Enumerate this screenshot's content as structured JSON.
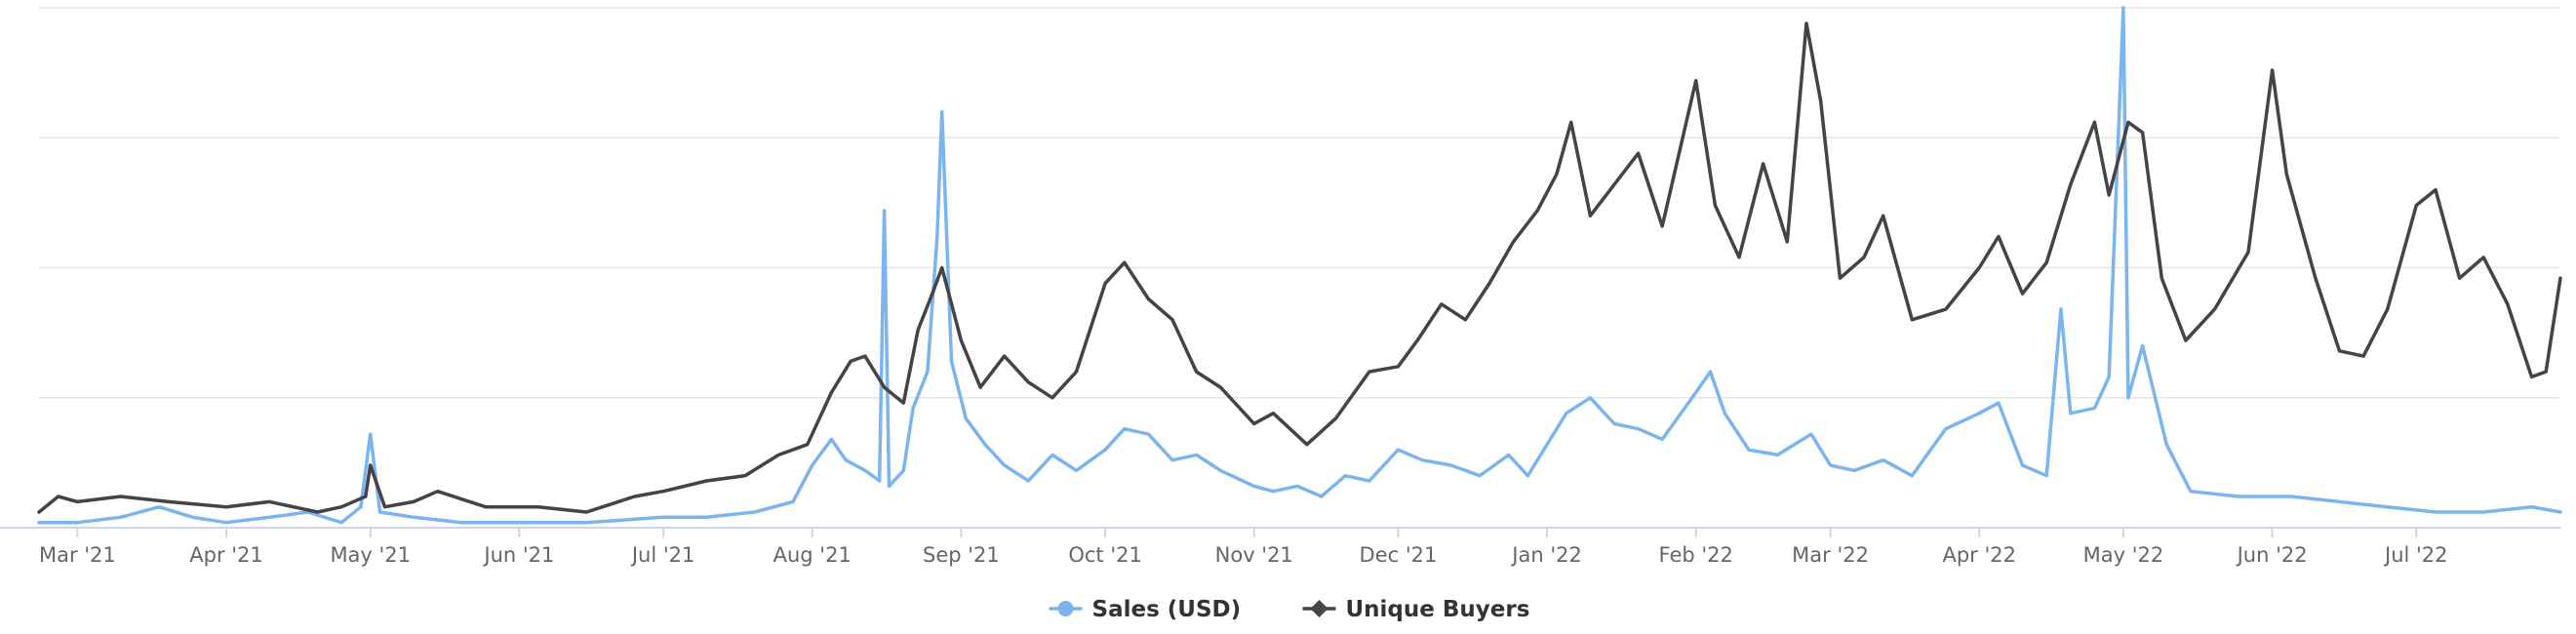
{
  "chart_data": {
    "type": "line",
    "title": "",
    "xlabel": "",
    "ylabel": "",
    "grid": true,
    "legend_position": "bottom-center",
    "x_tick_labels": [
      "Mar '21",
      "Apr '21",
      "May '21",
      "Jun '21",
      "Jul '21",
      "Aug '21",
      "Sep '21",
      "Oct '21",
      "Nov '21",
      "Dec '21",
      "Jan '22",
      "Feb '22",
      "Mar '22",
      "Apr '22",
      "May '22",
      "Jun '22",
      "Jul '22"
    ],
    "x_tick_dates": [
      "2021-03-01",
      "2021-04-01",
      "2021-05-01",
      "2021-06-01",
      "2021-07-01",
      "2021-08-01",
      "2021-09-01",
      "2021-10-01",
      "2021-11-01",
      "2021-12-01",
      "2022-01-01",
      "2022-02-01",
      "2022-03-01",
      "2022-04-01",
      "2022-05-01",
      "2022-06-01",
      "2022-07-01"
    ],
    "xlim": [
      "2021-02-21",
      "2022-07-31"
    ],
    "ylim": [
      0,
      100
    ],
    "series": [
      {
        "name": "Sales (USD)",
        "color": "#7cb5ec",
        "marker": "circle",
        "points": [
          [
            "2021-02-21",
            1
          ],
          [
            "2021-03-01",
            1
          ],
          [
            "2021-03-10",
            2
          ],
          [
            "2021-03-18",
            4
          ],
          [
            "2021-03-25",
            2
          ],
          [
            "2021-04-01",
            1
          ],
          [
            "2021-04-10",
            2
          ],
          [
            "2021-04-18",
            3
          ],
          [
            "2021-04-25",
            1
          ],
          [
            "2021-04-29",
            4
          ],
          [
            "2021-05-01",
            18
          ],
          [
            "2021-05-03",
            3
          ],
          [
            "2021-05-10",
            2
          ],
          [
            "2021-05-20",
            1
          ],
          [
            "2021-06-01",
            1
          ],
          [
            "2021-06-15",
            1
          ],
          [
            "2021-07-01",
            2
          ],
          [
            "2021-07-10",
            2
          ],
          [
            "2021-07-20",
            3
          ],
          [
            "2021-07-28",
            5
          ],
          [
            "2021-08-01",
            12
          ],
          [
            "2021-08-05",
            17
          ],
          [
            "2021-08-08",
            13
          ],
          [
            "2021-08-12",
            11
          ],
          [
            "2021-08-15",
            9
          ],
          [
            "2021-08-16",
            61
          ],
          [
            "2021-08-17",
            8
          ],
          [
            "2021-08-20",
            11
          ],
          [
            "2021-08-22",
            23
          ],
          [
            "2021-08-25",
            30
          ],
          [
            "2021-08-27",
            56
          ],
          [
            "2021-08-28",
            80
          ],
          [
            "2021-08-30",
            32
          ],
          [
            "2021-09-02",
            21
          ],
          [
            "2021-09-06",
            16
          ],
          [
            "2021-09-10",
            12
          ],
          [
            "2021-09-15",
            9
          ],
          [
            "2021-09-20",
            14
          ],
          [
            "2021-09-25",
            11
          ],
          [
            "2021-10-01",
            15
          ],
          [
            "2021-10-05",
            19
          ],
          [
            "2021-10-10",
            18
          ],
          [
            "2021-10-15",
            13
          ],
          [
            "2021-10-20",
            14
          ],
          [
            "2021-10-25",
            11
          ],
          [
            "2021-11-01",
            8
          ],
          [
            "2021-11-05",
            7
          ],
          [
            "2021-11-10",
            8
          ],
          [
            "2021-11-15",
            6
          ],
          [
            "2021-11-20",
            10
          ],
          [
            "2021-11-25",
            9
          ],
          [
            "2021-12-01",
            15
          ],
          [
            "2021-12-06",
            13
          ],
          [
            "2021-12-12",
            12
          ],
          [
            "2021-12-18",
            10
          ],
          [
            "2021-12-24",
            14
          ],
          [
            "2021-12-28",
            10
          ],
          [
            "2022-01-01",
            16
          ],
          [
            "2022-01-05",
            22
          ],
          [
            "2022-01-10",
            25
          ],
          [
            "2022-01-15",
            20
          ],
          [
            "2022-01-20",
            19
          ],
          [
            "2022-01-25",
            17
          ],
          [
            "2022-02-01",
            26
          ],
          [
            "2022-02-04",
            30
          ],
          [
            "2022-02-07",
            22
          ],
          [
            "2022-02-12",
            15
          ],
          [
            "2022-02-18",
            14
          ],
          [
            "2022-02-25",
            18
          ],
          [
            "2022-03-01",
            12
          ],
          [
            "2022-03-06",
            11
          ],
          [
            "2022-03-12",
            13
          ],
          [
            "2022-03-18",
            10
          ],
          [
            "2022-03-25",
            19
          ],
          [
            "2022-04-01",
            22
          ],
          [
            "2022-04-05",
            24
          ],
          [
            "2022-04-10",
            12
          ],
          [
            "2022-04-15",
            10
          ],
          [
            "2022-04-18",
            42
          ],
          [
            "2022-04-20",
            22
          ],
          [
            "2022-04-25",
            23
          ],
          [
            "2022-04-28",
            29
          ],
          [
            "2022-05-01",
            100
          ],
          [
            "2022-05-02",
            25
          ],
          [
            "2022-05-05",
            35
          ],
          [
            "2022-05-10",
            16
          ],
          [
            "2022-05-15",
            7
          ],
          [
            "2022-05-25",
            6
          ],
          [
            "2022-06-05",
            6
          ],
          [
            "2022-06-15",
            5
          ],
          [
            "2022-06-25",
            4
          ],
          [
            "2022-07-05",
            3
          ],
          [
            "2022-07-15",
            3
          ],
          [
            "2022-07-25",
            4
          ],
          [
            "2022-07-31",
            3
          ]
        ]
      },
      {
        "name": "Unique Buyers",
        "color": "#434348",
        "marker": "diamond",
        "points": [
          [
            "2021-02-21",
            3
          ],
          [
            "2021-02-25",
            6
          ],
          [
            "2021-03-01",
            5
          ],
          [
            "2021-03-10",
            6
          ],
          [
            "2021-03-20",
            5
          ],
          [
            "2021-04-01",
            4
          ],
          [
            "2021-04-10",
            5
          ],
          [
            "2021-04-20",
            3
          ],
          [
            "2021-04-25",
            4
          ],
          [
            "2021-04-30",
            6
          ],
          [
            "2021-05-01",
            12
          ],
          [
            "2021-05-04",
            4
          ],
          [
            "2021-05-10",
            5
          ],
          [
            "2021-05-15",
            7
          ],
          [
            "2021-05-25",
            4
          ],
          [
            "2021-06-05",
            4
          ],
          [
            "2021-06-15",
            3
          ],
          [
            "2021-06-25",
            6
          ],
          [
            "2021-07-01",
            7
          ],
          [
            "2021-07-10",
            9
          ],
          [
            "2021-07-18",
            10
          ],
          [
            "2021-07-25",
            14
          ],
          [
            "2021-07-31",
            16
          ],
          [
            "2021-08-05",
            26
          ],
          [
            "2021-08-09",
            32
          ],
          [
            "2021-08-12",
            33
          ],
          [
            "2021-08-16",
            27
          ],
          [
            "2021-08-20",
            24
          ],
          [
            "2021-08-23",
            38
          ],
          [
            "2021-08-26",
            45
          ],
          [
            "2021-08-28",
            50
          ],
          [
            "2021-09-01",
            36
          ],
          [
            "2021-09-05",
            27
          ],
          [
            "2021-09-10",
            33
          ],
          [
            "2021-09-15",
            28
          ],
          [
            "2021-09-20",
            25
          ],
          [
            "2021-09-25",
            30
          ],
          [
            "2021-10-01",
            47
          ],
          [
            "2021-10-05",
            51
          ],
          [
            "2021-10-10",
            44
          ],
          [
            "2021-10-15",
            40
          ],
          [
            "2021-10-20",
            30
          ],
          [
            "2021-10-25",
            27
          ],
          [
            "2021-11-01",
            20
          ],
          [
            "2021-11-05",
            22
          ],
          [
            "2021-11-12",
            16
          ],
          [
            "2021-11-18",
            21
          ],
          [
            "2021-11-25",
            30
          ],
          [
            "2021-12-01",
            31
          ],
          [
            "2021-12-05",
            36
          ],
          [
            "2021-12-10",
            43
          ],
          [
            "2021-12-15",
            40
          ],
          [
            "2021-12-20",
            47
          ],
          [
            "2021-12-25",
            55
          ],
          [
            "2021-12-30",
            61
          ],
          [
            "2022-01-03",
            68
          ],
          [
            "2022-01-06",
            78
          ],
          [
            "2022-01-10",
            60
          ],
          [
            "2022-01-15",
            66
          ],
          [
            "2022-01-20",
            72
          ],
          [
            "2022-01-25",
            58
          ],
          [
            "2022-02-01",
            86
          ],
          [
            "2022-02-05",
            62
          ],
          [
            "2022-02-10",
            52
          ],
          [
            "2022-02-15",
            70
          ],
          [
            "2022-02-20",
            55
          ],
          [
            "2022-02-24",
            97
          ],
          [
            "2022-02-27",
            82
          ],
          [
            "2022-03-03",
            48
          ],
          [
            "2022-03-08",
            52
          ],
          [
            "2022-03-12",
            60
          ],
          [
            "2022-03-18",
            40
          ],
          [
            "2022-03-25",
            42
          ],
          [
            "2022-04-01",
            50
          ],
          [
            "2022-04-05",
            56
          ],
          [
            "2022-04-10",
            45
          ],
          [
            "2022-04-15",
            51
          ],
          [
            "2022-04-20",
            66
          ],
          [
            "2022-04-25",
            78
          ],
          [
            "2022-04-28",
            64
          ],
          [
            "2022-05-02",
            78
          ],
          [
            "2022-05-05",
            76
          ],
          [
            "2022-05-09",
            48
          ],
          [
            "2022-05-14",
            36
          ],
          [
            "2022-05-20",
            42
          ],
          [
            "2022-05-27",
            53
          ],
          [
            "2022-06-01",
            88
          ],
          [
            "2022-06-04",
            68
          ],
          [
            "2022-06-10",
            48
          ],
          [
            "2022-06-15",
            34
          ],
          [
            "2022-06-20",
            33
          ],
          [
            "2022-06-25",
            42
          ],
          [
            "2022-07-01",
            62
          ],
          [
            "2022-07-05",
            65
          ],
          [
            "2022-07-10",
            48
          ],
          [
            "2022-07-15",
            52
          ],
          [
            "2022-07-20",
            43
          ],
          [
            "2022-07-25",
            29
          ],
          [
            "2022-07-28",
            30
          ],
          [
            "2022-07-31",
            48
          ]
        ]
      }
    ]
  }
}
